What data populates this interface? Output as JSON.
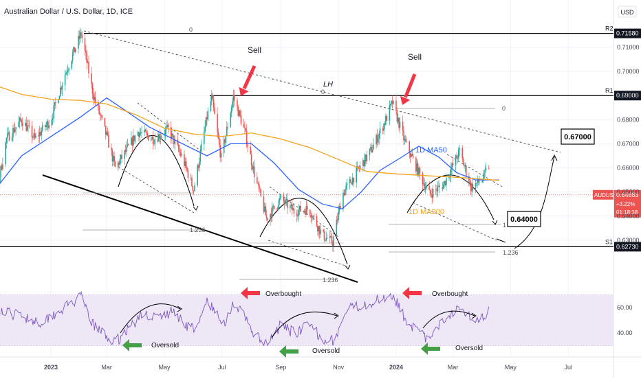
{
  "header": {
    "title": "Australian Dollar / U.S. Dollar, 1D, ICE"
  },
  "currency": "USD",
  "symbol": "AUDUSD",
  "colors": {
    "up": "#26a69a",
    "down": "#ef5350",
    "ma50": "#2962ff",
    "ma200": "#f7a21b",
    "rsi": "#7e57c2",
    "rsi_band": "#ede7f6",
    "arrow_red": "#f23645",
    "arrow_green": "#43a047",
    "axis_text": "#434651",
    "grid": "#f0f3fa"
  },
  "levels": {
    "r2": {
      "label": "R2",
      "value": 0.7158,
      "price_label": "0.71580",
      "fib": "0"
    },
    "r1": {
      "label": "R1",
      "value": 0.69,
      "price_label": "0.69000",
      "fib": "0",
      "fib2": "0"
    },
    "s1": {
      "label": "S1",
      "value": 0.6273,
      "price_label": "0.62730"
    }
  },
  "current": {
    "price_label": "0.64883",
    "change": "+3.22%",
    "countdown": "01:18:38",
    "value": 0.64883
  },
  "annotations": {
    "sell1": "Sell",
    "sell2": "Sell",
    "lh": "LH",
    "ma50_label": "1D MA50",
    "ma200_label": "1D MA200",
    "target_high": "0.67000",
    "target_low": "0.64000",
    "fib_1": "1",
    "fib_1236_a": "1.236",
    "fib_1236_b": "1.236",
    "fib_1236_c": "1.236",
    "overbought1": "Overbought",
    "overbought2": "Overbought",
    "oversold1": "Oversold",
    "oversold2": "Oversold",
    "oversold3": "Oversold"
  },
  "chart_data": [
    {
      "type": "candlestick",
      "title": "Australian Dollar / U.S. Dollar, 1D, ICE",
      "x_ticks": [
        "2023",
        "Mar",
        "May",
        "Jul",
        "Sep",
        "Nov",
        "2024",
        "Mar",
        "May",
        "Jul"
      ],
      "y_ticks": [
        0.71,
        0.7,
        0.69,
        0.68,
        0.67,
        0.66,
        0.65,
        0.64,
        0.63
      ],
      "y_tick_labels": [
        "0.71000",
        "0.70000",
        "0.69000",
        "0.68000",
        "0.67000",
        "0.66000",
        "0.65000",
        "0.64000",
        "0.63000"
      ],
      "ylim": [
        0.6225,
        0.7245
      ],
      "price_path": [
        [
          "2022-10-01",
          0.645
        ],
        [
          "2022-10-15",
          0.628
        ],
        [
          "2022-11-01",
          0.642
        ],
        [
          "2022-11-15",
          0.672
        ],
        [
          "2022-12-01",
          0.68
        ],
        [
          "2022-12-15",
          0.672
        ],
        [
          "2023-01-01",
          0.68
        ],
        [
          "2023-01-15",
          0.698
        ],
        [
          "2023-02-02",
          0.7158
        ],
        [
          "2023-02-15",
          0.69
        ],
        [
          "2023-03-01",
          0.673
        ],
        [
          "2023-03-10",
          0.66
        ],
        [
          "2023-03-20",
          0.666
        ],
        [
          "2023-04-03",
          0.675
        ],
        [
          "2023-04-20",
          0.672
        ],
        [
          "2023-05-05",
          0.676
        ],
        [
          "2023-05-20",
          0.664
        ],
        [
          "2023-06-01",
          0.651
        ],
        [
          "2023-06-15",
          0.681
        ],
        [
          "2023-06-20",
          0.689
        ],
        [
          "2023-06-30",
          0.664
        ],
        [
          "2023-07-13",
          0.6895
        ],
        [
          "2023-07-25",
          0.675
        ],
        [
          "2023-08-05",
          0.656
        ],
        [
          "2023-08-17",
          0.639
        ],
        [
          "2023-09-01",
          0.647
        ],
        [
          "2023-09-15",
          0.642
        ],
        [
          "2023-10-01",
          0.643
        ],
        [
          "2023-10-15",
          0.632
        ],
        [
          "2023-10-26",
          0.629
        ],
        [
          "2023-11-05",
          0.649
        ],
        [
          "2023-11-20",
          0.658
        ],
        [
          "2023-12-05",
          0.667
        ],
        [
          "2023-12-20",
          0.679
        ],
        [
          "2023-12-28",
          0.6871
        ],
        [
          "2024-01-10",
          0.671
        ],
        [
          "2024-01-25",
          0.658
        ],
        [
          "2024-02-05",
          0.649
        ],
        [
          "2024-02-20",
          0.653
        ],
        [
          "2024-03-08",
          0.6668
        ],
        [
          "2024-03-20",
          0.652
        ],
        [
          "2024-04-01",
          0.655
        ],
        [
          "2024-04-10",
          0.6625
        ],
        [
          "2024-04-19",
          0.64883
        ]
      ],
      "series": [
        {
          "name": "1D MA50",
          "points": [
            [
              "2022-10-01",
              0.645
            ],
            [
              "2022-11-01",
              0.65
            ],
            [
              "2022-12-01",
              0.665
            ],
            [
              "2023-01-01",
              0.673
            ],
            [
              "2023-02-01",
              0.681
            ],
            [
              "2023-03-01",
              0.689
            ],
            [
              "2023-03-20",
              0.684
            ],
            [
              "2023-04-15",
              0.677
            ],
            [
              "2023-05-15",
              0.671
            ],
            [
              "2023-06-15",
              0.665
            ],
            [
              "2023-07-10",
              0.67
            ],
            [
              "2023-08-01",
              0.67
            ],
            [
              "2023-08-25",
              0.662
            ],
            [
              "2023-09-20",
              0.651
            ],
            [
              "2023-10-15",
              0.645
            ],
            [
              "2023-11-05",
              0.643
            ],
            [
              "2023-11-25",
              0.65
            ],
            [
              "2023-12-15",
              0.659
            ],
            [
              "2024-01-05",
              0.664
            ],
            [
              "2024-01-25",
              0.669
            ],
            [
              "2024-02-15",
              0.6645
            ],
            [
              "2024-03-05",
              0.658
            ],
            [
              "2024-03-25",
              0.655
            ],
            [
              "2024-04-19",
              0.655
            ]
          ]
        },
        {
          "name": "1D MA200",
          "points": [
            [
              "2022-10-01",
              0.6995
            ],
            [
              "2022-11-01",
              0.6945
            ],
            [
              "2022-12-01",
              0.6905
            ],
            [
              "2023-01-01",
              0.6885
            ],
            [
              "2023-02-01",
              0.688
            ],
            [
              "2023-03-01",
              0.6865
            ],
            [
              "2023-04-01",
              0.682
            ],
            [
              "2023-05-01",
              0.6765
            ],
            [
              "2023-06-01",
              0.674
            ],
            [
              "2023-07-01",
              0.673
            ],
            [
              "2023-08-01",
              0.6745
            ],
            [
              "2023-09-01",
              0.672
            ],
            [
              "2023-10-01",
              0.6685
            ],
            [
              "2023-11-01",
              0.6635
            ],
            [
              "2023-12-01",
              0.6585
            ],
            [
              "2024-01-01",
              0.6575
            ],
            [
              "2024-02-01",
              0.6568
            ],
            [
              "2024-03-01",
              0.6562
            ],
            [
              "2024-04-19",
              0.6548
            ]
          ]
        }
      ]
    },
    {
      "type": "line",
      "name": "RSI",
      "y_ticks": [
        60,
        40
      ],
      "y_tick_labels": [
        "60.00",
        "40.00"
      ],
      "ylim": [
        26,
        77
      ],
      "bands": [
        30,
        70
      ],
      "points": [
        [
          "2022-10-01",
          48
        ],
        [
          "2022-10-20",
          40
        ],
        [
          "2022-11-10",
          56
        ],
        [
          "2022-12-01",
          54
        ],
        [
          "2022-12-20",
          48
        ],
        [
          "2023-01-15",
          60
        ],
        [
          "2023-02-02",
          68
        ],
        [
          "2023-02-15",
          46
        ],
        [
          "2023-03-01",
          37
        ],
        [
          "2023-03-10",
          32
        ],
        [
          "2023-03-25",
          45
        ],
        [
          "2023-04-10",
          55
        ],
        [
          "2023-04-25",
          52
        ],
        [
          "2023-05-10",
          57
        ],
        [
          "2023-05-25",
          46
        ],
        [
          "2023-06-05",
          43
        ],
        [
          "2023-06-15",
          66
        ],
        [
          "2023-06-22",
          58
        ],
        [
          "2023-07-02",
          46
        ],
        [
          "2023-07-13",
          64
        ],
        [
          "2023-07-25",
          52
        ],
        [
          "2023-08-05",
          38
        ],
        [
          "2023-08-17",
          30
        ],
        [
          "2023-09-01",
          46
        ],
        [
          "2023-09-15",
          40
        ],
        [
          "2023-10-01",
          46
        ],
        [
          "2023-10-15",
          36
        ],
        [
          "2023-10-28",
          34
        ],
        [
          "2023-11-10",
          58
        ],
        [
          "2023-11-25",
          62
        ],
        [
          "2023-12-10",
          65
        ],
        [
          "2023-12-28",
          71
        ],
        [
          "2024-01-10",
          52
        ],
        [
          "2024-01-25",
          40
        ],
        [
          "2024-02-05",
          34
        ],
        [
          "2024-02-20",
          50
        ],
        [
          "2024-03-08",
          62
        ],
        [
          "2024-03-20",
          52
        ],
        [
          "2024-04-01",
          52
        ],
        [
          "2024-04-10",
          59
        ],
        [
          "2024-04-19",
          40
        ]
      ]
    }
  ]
}
